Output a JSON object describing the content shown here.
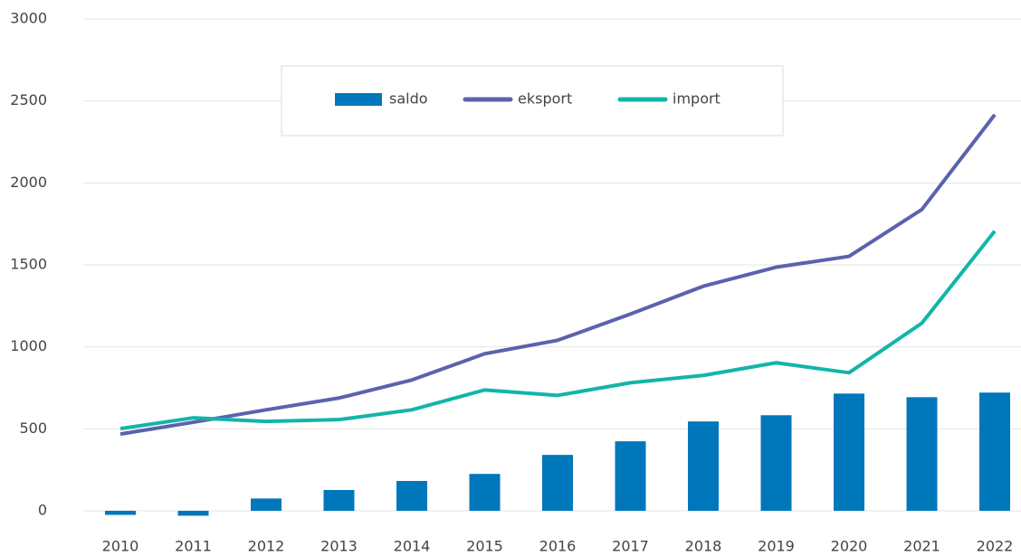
{
  "chart_data": {
    "type": "bar-line",
    "categories": [
      "2010",
      "2011",
      "2012",
      "2013",
      "2014",
      "2015",
      "2016",
      "2017",
      "2018",
      "2019",
      "2020",
      "2021",
      "2022"
    ],
    "series": [
      {
        "name": "saldo",
        "type": "bar",
        "color": "#0077bb",
        "values": [
          -25,
          -30,
          75,
          127,
          182,
          225,
          341,
          424,
          545,
          583,
          715,
          693,
          721
        ]
      },
      {
        "name": "eksport",
        "type": "line",
        "color": "#5b62ad",
        "values": [
          468,
          540,
          616,
          688,
          798,
          958,
          1040,
          1200,
          1370,
          1486,
          1552,
          1838,
          2416
        ]
      },
      {
        "name": "import",
        "type": "line",
        "color": "#12b5a9",
        "values": [
          501,
          567,
          545,
          556,
          616,
          737,
          704,
          781,
          826,
          903,
          842,
          1145,
          1706
        ]
      }
    ],
    "ylim": [
      0,
      3000
    ],
    "yticks": [
      0,
      500,
      1000,
      1500,
      2000,
      2500,
      3000
    ],
    "grid": true,
    "legend": "top"
  }
}
